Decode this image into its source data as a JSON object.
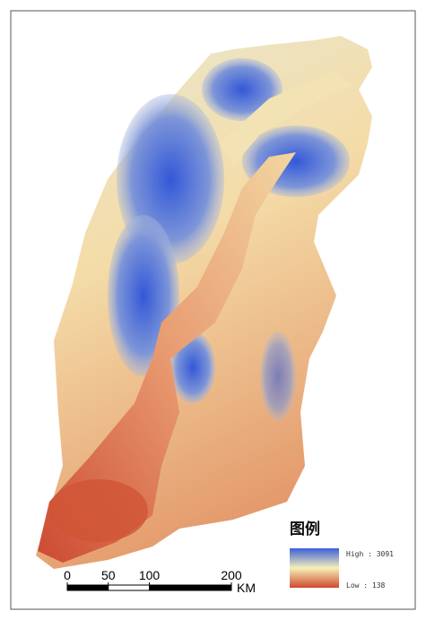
{
  "legend": {
    "title": "图例",
    "high": "High : 3091",
    "low": "Low : 138"
  },
  "scale_bar": {
    "ticks": [
      0,
      50,
      100,
      200
    ],
    "unit": "KM"
  }
}
